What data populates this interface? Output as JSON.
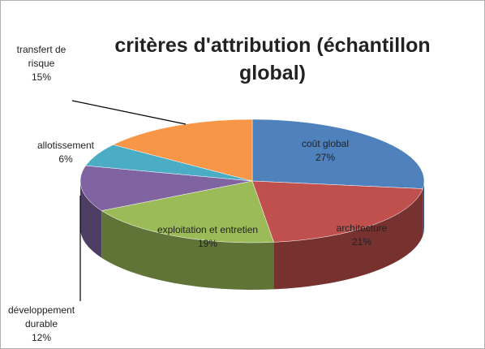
{
  "chart_data": {
    "type": "pie",
    "title": "critères d'attribution (échantillon global)",
    "categories": [
      "coût global",
      "architecture",
      "exploitation et entretien",
      "développement durable",
      "allotissement",
      "transfert de risque"
    ],
    "values": [
      27,
      21,
      19,
      12,
      6,
      15
    ],
    "value_labels": [
      "27%",
      "21%",
      "19%",
      "12%",
      "6%",
      "15%"
    ],
    "colors": [
      "#4f81bd",
      "#c0504d",
      "#9bbb59",
      "#8064a2",
      "#4bacc6",
      "#f79646"
    ]
  }
}
